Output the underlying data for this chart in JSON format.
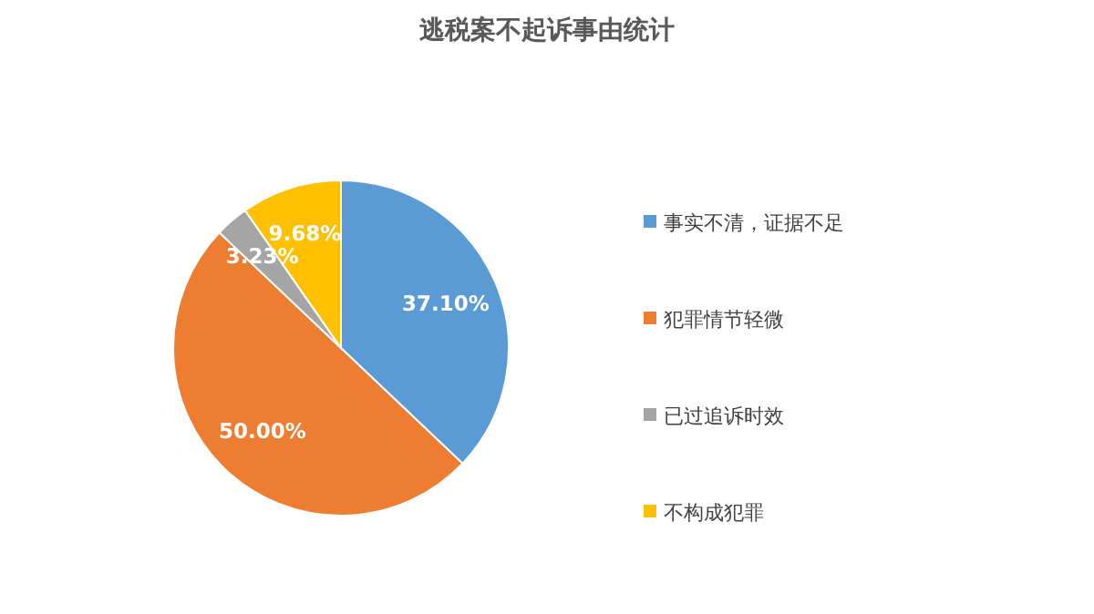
{
  "chart_data": {
    "type": "pie",
    "title": "逃税案不起诉事由统计",
    "categories": [
      "事实不清，证据不足",
      "犯罪情节轻微",
      "已过追诉时效",
      "不构成犯罪"
    ],
    "values": [
      37.1,
      50.0,
      3.23,
      9.68
    ],
    "colors": [
      "#5b9bd5",
      "#ed7d31",
      "#a5a5a5",
      "#ffc000"
    ],
    "value_labels": [
      "37.10%",
      "50.00%",
      "3.23%",
      "9.68%"
    ],
    "legend": "right"
  }
}
